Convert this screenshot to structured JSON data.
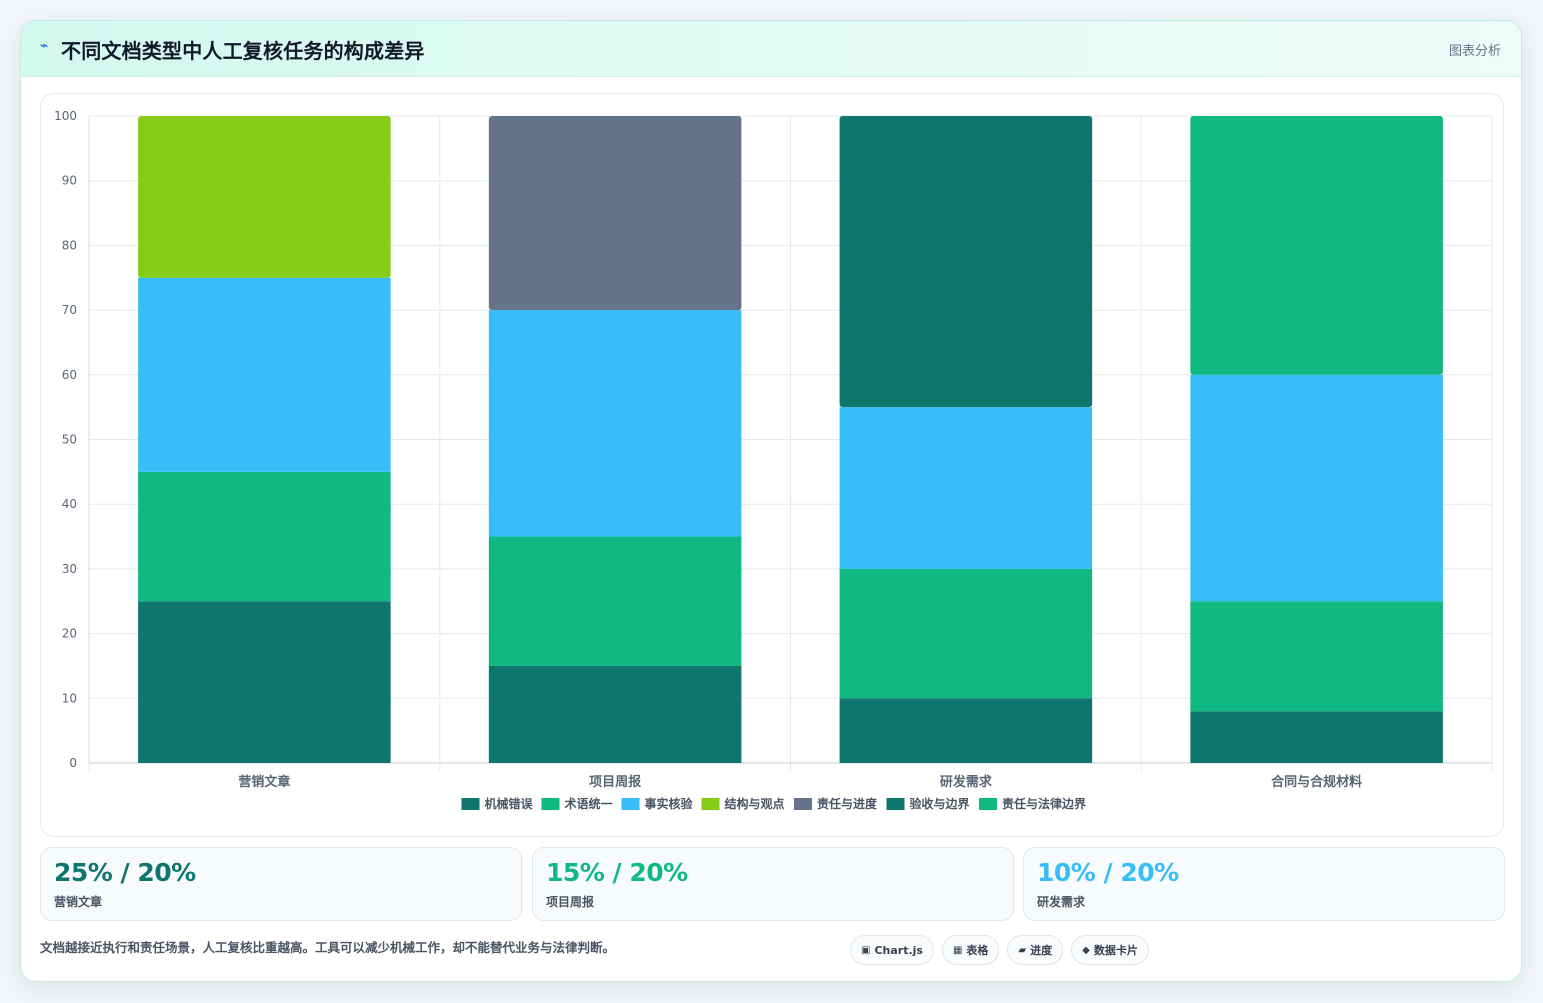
{
  "header": {
    "title": "不同文档类型中人工复核任务的构成差异",
    "icon": "lightning-icon",
    "tag": "图表分析"
  },
  "chart_data": {
    "type": "bar",
    "stacked": true,
    "title": "",
    "xlabel": "",
    "ylabel": "",
    "ylim": [
      0,
      100
    ],
    "yticks": [
      0,
      10,
      20,
      30,
      40,
      50,
      60,
      70,
      80,
      90,
      100
    ],
    "grid": true,
    "legend_position": "bottom",
    "categories": [
      "营销文章",
      "项目周报",
      "研发需求",
      "合同与合规材料"
    ],
    "series": [
      {
        "name": "机械错误",
        "color": "#0f766e",
        "values": [
          25,
          15,
          10,
          8
        ]
      },
      {
        "name": "术语统一",
        "color": "#10b981",
        "values": [
          20,
          20,
          20,
          17
        ]
      },
      {
        "name": "事实核验",
        "color": "#38bdf8",
        "values": [
          30,
          35,
          25,
          35
        ]
      },
      {
        "name": "结构与观点",
        "color": "#84cc16",
        "values": [
          25,
          0,
          0,
          0
        ]
      },
      {
        "name": "责任与进度",
        "color": "#64748b",
        "values": [
          0,
          30,
          0,
          0
        ]
      },
      {
        "name": "验收与边界",
        "color": "#0f766e",
        "values": [
          0,
          0,
          45,
          0
        ]
      },
      {
        "name": "责任与法律边界",
        "color": "#10b981",
        "values": [
          0,
          0,
          0,
          40
        ]
      }
    ]
  },
  "kpis": [
    {
      "value": "25% / 20%",
      "label": "营销文章",
      "color": "#0f766e"
    },
    {
      "value": "15% / 20%",
      "label": "项目周报",
      "color": "#10b981"
    },
    {
      "value": "10% / 20%",
      "label": "研发需求",
      "color": "#38bdf8"
    }
  ],
  "footnote": "文档越接近执行和责任场景，人工复核比重越高。工具可以减少机械工作，却不能替代业务与法律判断。",
  "chips": [
    {
      "icon": "▣",
      "icon_name": "chart-icon",
      "label": "Chart.js"
    },
    {
      "icon": "▦",
      "icon_name": "table-icon",
      "label": "表格"
    },
    {
      "icon": "▰",
      "icon_name": "progress-icon",
      "label": "进度"
    },
    {
      "icon": "◆",
      "icon_name": "data-card-icon",
      "label": "数据卡片"
    }
  ]
}
